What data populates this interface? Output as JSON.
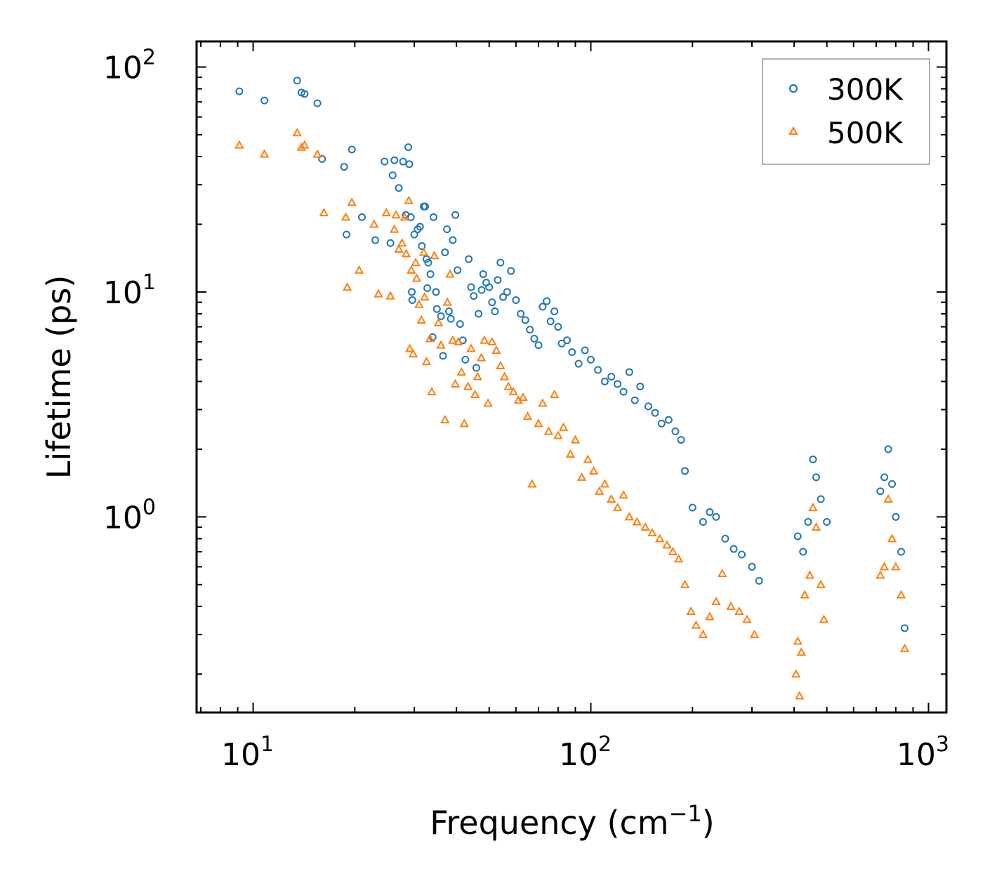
{
  "chart_data": {
    "type": "scatter",
    "title": "",
    "xlabel": "Frequency (cm",
    "xlabel_sup": "−1",
    "xlabel_end": ")",
    "ylabel": "Lifetime (ps)",
    "xscale": "log",
    "yscale": "log",
    "xlim": [
      6.8,
      1130
    ],
    "ylim": [
      0.135,
      130
    ],
    "legend_position": "top-right",
    "x_ticks": [
      {
        "value": 10,
        "base": "10",
        "exp": "1"
      },
      {
        "value": 100,
        "base": "10",
        "exp": "2"
      },
      {
        "value": 1000,
        "base": "10",
        "exp": "3"
      }
    ],
    "y_ticks": [
      {
        "value": 1,
        "base": "10",
        "exp": "0"
      },
      {
        "value": 10,
        "base": "10",
        "exp": "1"
      },
      {
        "value": 100,
        "base": "10",
        "exp": "2"
      }
    ],
    "series": [
      {
        "name": "300K",
        "marker": "circle",
        "color": "#1f77b4",
        "points": [
          [
            9.1,
            78
          ],
          [
            10.8,
            71
          ],
          [
            13.5,
            87
          ],
          [
            13.9,
            77
          ],
          [
            14.2,
            76
          ],
          [
            15.5,
            69
          ],
          [
            16,
            39
          ],
          [
            18.6,
            36
          ],
          [
            18.9,
            18
          ],
          [
            19.6,
            43
          ],
          [
            21,
            21.5
          ],
          [
            23,
            17
          ],
          [
            24.5,
            38
          ],
          [
            25.5,
            16.5
          ],
          [
            25.9,
            33
          ],
          [
            26.2,
            38.5
          ],
          [
            27,
            29
          ],
          [
            27.8,
            38
          ],
          [
            28.3,
            22
          ],
          [
            28.8,
            44
          ],
          [
            29,
            37
          ],
          [
            29.3,
            21.5
          ],
          [
            29.5,
            10
          ],
          [
            29.6,
            9.2
          ],
          [
            30,
            18
          ],
          [
            30.7,
            19
          ],
          [
            31.2,
            19.5
          ],
          [
            31.6,
            16
          ],
          [
            32,
            24
          ],
          [
            32.3,
            24
          ],
          [
            32.6,
            14
          ],
          [
            33,
            13.5
          ],
          [
            32.8,
            10.4
          ],
          [
            33.5,
            12
          ],
          [
            34.2,
            21.5
          ],
          [
            34.8,
            10
          ],
          [
            34,
            6.3
          ],
          [
            35,
            8.4
          ],
          [
            36,
            7.8
          ],
          [
            36.5,
            5.2
          ],
          [
            37,
            15
          ],
          [
            37.5,
            19
          ],
          [
            38,
            8.2
          ],
          [
            38.5,
            7.6
          ],
          [
            39,
            17
          ],
          [
            39.7,
            22
          ],
          [
            40.3,
            12.5
          ],
          [
            41,
            7.2
          ],
          [
            41.8,
            6.1
          ],
          [
            42.5,
            5
          ],
          [
            43.5,
            14
          ],
          [
            44.2,
            10.5
          ],
          [
            45,
            9.6
          ],
          [
            45.8,
            4.6
          ],
          [
            46.5,
            8
          ],
          [
            47.5,
            10.2
          ],
          [
            48,
            12
          ],
          [
            49,
            11
          ],
          [
            50,
            10.5
          ],
          [
            51,
            9
          ],
          [
            52,
            8.2
          ],
          [
            53,
            11.3
          ],
          [
            54,
            13.5
          ],
          [
            55,
            9.5
          ],
          [
            56.5,
            10
          ],
          [
            58,
            12.4
          ],
          [
            60,
            9.2
          ],
          [
            62,
            8
          ],
          [
            64,
            7.5
          ],
          [
            66,
            6.8
          ],
          [
            68,
            6.2
          ],
          [
            70,
            5.8
          ],
          [
            72,
            8.6
          ],
          [
            74,
            9.1
          ],
          [
            76,
            7.4
          ],
          [
            78,
            8.2
          ],
          [
            80,
            7
          ],
          [
            82,
            5.9
          ],
          [
            85,
            6.1
          ],
          [
            88,
            5.4
          ],
          [
            92,
            4.8
          ],
          [
            96,
            5.5
          ],
          [
            100,
            5
          ],
          [
            105,
            4.5
          ],
          [
            110,
            4
          ],
          [
            115,
            4.2
          ],
          [
            120,
            3.9
          ],
          [
            125,
            3.6
          ],
          [
            130,
            4.4
          ],
          [
            135,
            3.3
          ],
          [
            140,
            3.8
          ],
          [
            148,
            3.1
          ],
          [
            155,
            2.9
          ],
          [
            162,
            2.6
          ],
          [
            170,
            2.7
          ],
          [
            178,
            2.4
          ],
          [
            185,
            2.2
          ],
          [
            190,
            1.6
          ],
          [
            200,
            1.1
          ],
          [
            215,
            0.95
          ],
          [
            225,
            1.05
          ],
          [
            235,
            1
          ],
          [
            250,
            0.8
          ],
          [
            265,
            0.72
          ],
          [
            280,
            0.68
          ],
          [
            300,
            0.6
          ],
          [
            315,
            0.52
          ],
          [
            410,
            0.82
          ],
          [
            425,
            0.7
          ],
          [
            440,
            0.95
          ],
          [
            455,
            1.8
          ],
          [
            465,
            1.5
          ],
          [
            480,
            1.2
          ],
          [
            500,
            0.95
          ],
          [
            720,
            1.3
          ],
          [
            740,
            1.5
          ],
          [
            760,
            2
          ],
          [
            780,
            1.4
          ],
          [
            800,
            1
          ],
          [
            830,
            0.7
          ],
          [
            850,
            0.32
          ]
        ]
      },
      {
        "name": "500K",
        "marker": "triangle",
        "color": "#ff7f0e",
        "points": [
          [
            9.1,
            45
          ],
          [
            10.8,
            41
          ],
          [
            13.5,
            51
          ],
          [
            13.9,
            44
          ],
          [
            14.2,
            45
          ],
          [
            15.5,
            41
          ],
          [
            16.2,
            22.5
          ],
          [
            18.8,
            21.5
          ],
          [
            19,
            10.5
          ],
          [
            19.6,
            25
          ],
          [
            20.6,
            12.5
          ],
          [
            22.8,
            20
          ],
          [
            23.5,
            9.8
          ],
          [
            24.8,
            22.5
          ],
          [
            25.5,
            9.6
          ],
          [
            26.2,
            19
          ],
          [
            26.5,
            22
          ],
          [
            27,
            15.5
          ],
          [
            27.6,
            16.5
          ],
          [
            28.1,
            21.5
          ],
          [
            28.4,
            14.8
          ],
          [
            28.9,
            25.5
          ],
          [
            29.1,
            5.6
          ],
          [
            29.4,
            12.5
          ],
          [
            29.8,
            5.3
          ],
          [
            30.3,
            13.5
          ],
          [
            30.5,
            11.5
          ],
          [
            31,
            8.8
          ],
          [
            31.5,
            7.5
          ],
          [
            32,
            15
          ],
          [
            32.2,
            9.5
          ],
          [
            32.6,
            4.9
          ],
          [
            33.4,
            6.2
          ],
          [
            33.8,
            3.6
          ],
          [
            34.4,
            14.5
          ],
          [
            35.4,
            7.3
          ],
          [
            36,
            5.8
          ],
          [
            37,
            2.7
          ],
          [
            37.6,
            9
          ],
          [
            38.3,
            12
          ],
          [
            39,
            6.1
          ],
          [
            39.7,
            3.9
          ],
          [
            40.5,
            6
          ],
          [
            41.4,
            4.4
          ],
          [
            42.2,
            2.6
          ],
          [
            43.3,
            3.8
          ],
          [
            44.2,
            5.6
          ],
          [
            45.4,
            3.5
          ],
          [
            46.2,
            4.2
          ],
          [
            47.4,
            5.1
          ],
          [
            48.4,
            6.1
          ],
          [
            49.6,
            3.2
          ],
          [
            51,
            6
          ],
          [
            52.5,
            5.5
          ],
          [
            54,
            4.7
          ],
          [
            55.5,
            4.2
          ],
          [
            57,
            3.8
          ],
          [
            59,
            3.6
          ],
          [
            61,
            3.3
          ],
          [
            63,
            3.4
          ],
          [
            65,
            2.8
          ],
          [
            67,
            1.4
          ],
          [
            70,
            2.6
          ],
          [
            72,
            3.2
          ],
          [
            75,
            2.4
          ],
          [
            78,
            3.5
          ],
          [
            80,
            2.3
          ],
          [
            83,
            2.5
          ],
          [
            87,
            1.9
          ],
          [
            90,
            2.2
          ],
          [
            94,
            1.5
          ],
          [
            98,
            1.8
          ],
          [
            102,
            1.6
          ],
          [
            106,
            1.3
          ],
          [
            110,
            1.4
          ],
          [
            115,
            1.2
          ],
          [
            120,
            1.1
          ],
          [
            125,
            1.25
          ],
          [
            130,
            1
          ],
          [
            137,
            0.95
          ],
          [
            145,
            0.9
          ],
          [
            152,
            0.85
          ],
          [
            160,
            0.8
          ],
          [
            168,
            0.75
          ],
          [
            175,
            0.7
          ],
          [
            182,
            0.65
          ],
          [
            190,
            0.5
          ],
          [
            198,
            0.38
          ],
          [
            205,
            0.33
          ],
          [
            215,
            0.3
          ],
          [
            225,
            0.36
          ],
          [
            235,
            0.42
          ],
          [
            245,
            0.56
          ],
          [
            260,
            0.4
          ],
          [
            275,
            0.38
          ],
          [
            290,
            0.35
          ],
          [
            305,
            0.3
          ],
          [
            405,
            0.2
          ],
          [
            410,
            0.28
          ],
          [
            415,
            0.16
          ],
          [
            420,
            0.25
          ],
          [
            430,
            0.45
          ],
          [
            445,
            0.55
          ],
          [
            455,
            1.1
          ],
          [
            465,
            0.9
          ],
          [
            480,
            0.5
          ],
          [
            490,
            0.35
          ],
          [
            720,
            0.55
          ],
          [
            740,
            0.6
          ],
          [
            760,
            1.2
          ],
          [
            780,
            0.8
          ],
          [
            800,
            0.6
          ],
          [
            830,
            0.45
          ],
          [
            850,
            0.26
          ]
        ]
      }
    ]
  }
}
